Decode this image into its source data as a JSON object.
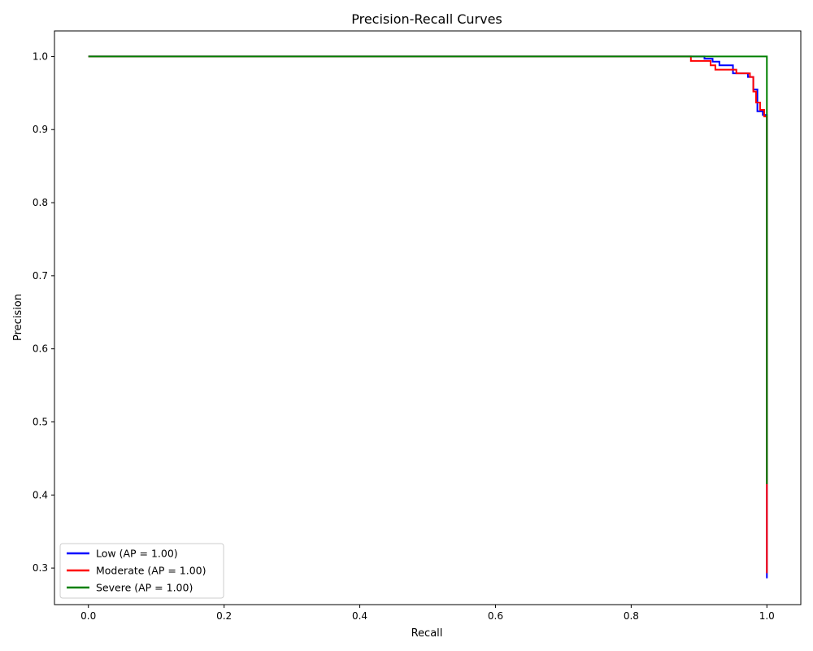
{
  "chart_data": {
    "type": "line",
    "title": "Precision-Recall Curves",
    "xlabel": "Recall",
    "ylabel": "Precision",
    "xlim": [
      -0.05,
      1.05
    ],
    "ylim": [
      0.25,
      1.035
    ],
    "xticks": [
      0.0,
      0.2,
      0.4,
      0.6,
      0.8,
      1.0
    ],
    "xtick_labels": [
      "0.0",
      "0.2",
      "0.4",
      "0.6",
      "0.8",
      "1.0"
    ],
    "yticks": [
      0.3,
      0.4,
      0.5,
      0.6,
      0.7,
      0.8,
      0.9,
      1.0
    ],
    "ytick_labels": [
      "0.3",
      "0.4",
      "0.5",
      "0.6",
      "0.7",
      "0.8",
      "0.9",
      "1.0"
    ],
    "grid": false,
    "legend_position": "lower-left",
    "series": [
      {
        "name": "Low (AP = 1.00)",
        "color": "#0000ff",
        "step": true,
        "x": [
          0.0,
          0.908,
          0.92,
          0.93,
          0.95,
          0.972,
          0.98,
          0.986,
          0.994,
          1.0,
          1.0
        ],
        "y": [
          1.0,
          0.997,
          0.993,
          0.988,
          0.977,
          0.972,
          0.955,
          0.925,
          0.92,
          0.895,
          0.286
        ]
      },
      {
        "name": "Moderate (AP = 1.00)",
        "color": "#ff0000",
        "step": true,
        "x": [
          0.0,
          0.888,
          0.917,
          0.924,
          0.955,
          0.975,
          0.98,
          0.984,
          0.99,
          0.996,
          1.0,
          1.0
        ],
        "y": [
          1.0,
          0.994,
          0.988,
          0.982,
          0.977,
          0.972,
          0.952,
          0.937,
          0.927,
          0.918,
          0.417,
          0.293
        ]
      },
      {
        "name": "Severe (AP = 1.00)",
        "color": "#008000",
        "step": true,
        "x": [
          0.0,
          1.0,
          1.0
        ],
        "y": [
          1.0,
          1.0,
          0.415
        ]
      }
    ]
  }
}
